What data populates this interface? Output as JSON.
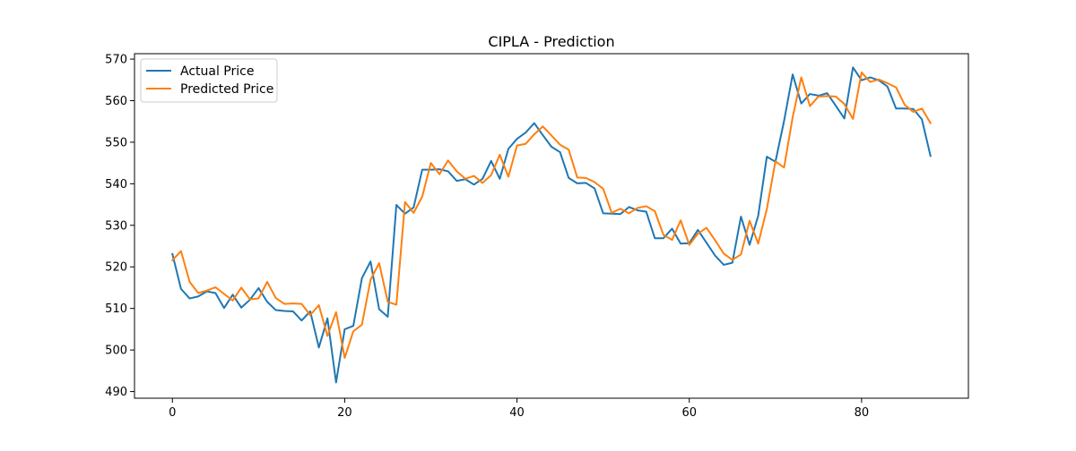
{
  "chart_data": {
    "type": "line",
    "title": "CIPLA - Prediction",
    "xlabel": "",
    "ylabel": "",
    "xlim": [
      -4.4,
      92.4
    ],
    "ylim": [
      488.4,
      571.3
    ],
    "x_ticks": [
      0,
      20,
      40,
      60,
      80
    ],
    "y_ticks": [
      490,
      500,
      510,
      520,
      530,
      540,
      550,
      560,
      570
    ],
    "grid": false,
    "legend": "top-left",
    "series": [
      {
        "name": "Actual Price",
        "color": "#1f77b4",
        "values": [
          523.1,
          514.7,
          512.4,
          512.9,
          514.1,
          513.7,
          510.1,
          513.3,
          510.2,
          512.1,
          514.9,
          511.6,
          509.6,
          509.4,
          509.3,
          507.1,
          509.3,
          500.6,
          507.6,
          492.2,
          505.0,
          505.8,
          517.3,
          521.3,
          509.8,
          508.0,
          534.9,
          532.8,
          534.3,
          543.4,
          543.4,
          543.5,
          543.0,
          540.7,
          541.1,
          539.8,
          541.2,
          545.5,
          541.2,
          548.4,
          550.8,
          552.3,
          554.6,
          551.7,
          548.9,
          547.6,
          541.4,
          540.1,
          540.2,
          538.9,
          532.9,
          532.8,
          532.7,
          534.4,
          533.6,
          533.3,
          526.9,
          526.9,
          529.2,
          525.6,
          525.7,
          528.9,
          525.8,
          522.7,
          520.5,
          521.0,
          532.1,
          525.3,
          532.3,
          546.5,
          545.3,
          555.1,
          566.3,
          559.3,
          561.6,
          561.2,
          561.8,
          558.8,
          555.7,
          568.0,
          564.9,
          565.6,
          564.9,
          563.4,
          558.1,
          558.1,
          558.0,
          555.5,
          546.7
        ]
      },
      {
        "name": "Predicted Price",
        "color": "#ff7f0e",
        "values": [
          521.6,
          523.8,
          516.4,
          513.7,
          514.3,
          515.1,
          513.5,
          511.9,
          515.0,
          512.2,
          512.4,
          516.4,
          512.5,
          511.1,
          511.2,
          511.1,
          508.4,
          510.8,
          503.4,
          509.1,
          498.1,
          504.5,
          506.1,
          516.9,
          520.9,
          511.6,
          510.9,
          535.6,
          533.0,
          536.9,
          545.0,
          542.3,
          545.6,
          543.0,
          541.2,
          541.9,
          540.2,
          542.1,
          547.0,
          541.7,
          549.2,
          549.6,
          551.9,
          553.8,
          551.6,
          549.4,
          548.2,
          541.5,
          541.4,
          540.4,
          538.8,
          533.0,
          534.0,
          532.9,
          534.2,
          534.6,
          533.4,
          527.7,
          526.5,
          531.2,
          525.3,
          528.0,
          529.4,
          526.4,
          523.2,
          521.7,
          523.0,
          531.1,
          525.6,
          533.9,
          545.4,
          543.9,
          556.0,
          565.6,
          558.7,
          561.0,
          561.1,
          561.0,
          559.2,
          555.6,
          566.8,
          564.5,
          565.1,
          564.2,
          563.2,
          559.0,
          557.3,
          558.1,
          554.6
        ]
      }
    ]
  }
}
